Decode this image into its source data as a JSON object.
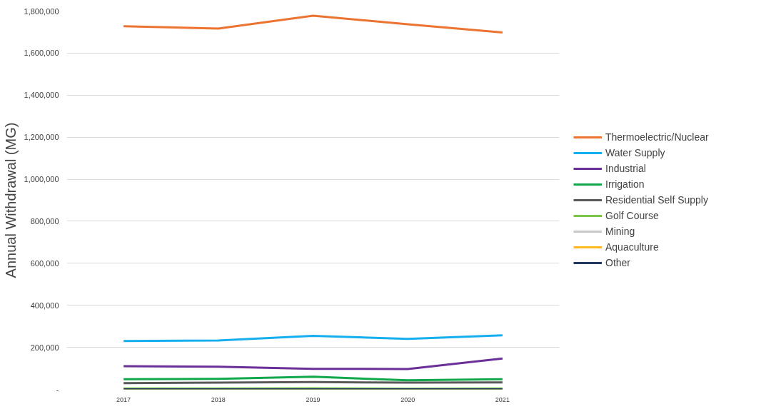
{
  "chart_data": {
    "type": "line",
    "ylabel": "Annual Withdrawal (MG)",
    "categories": [
      "2017",
      "2018",
      "2019",
      "2020",
      "2021"
    ],
    "ylim": [
      0,
      1800000
    ],
    "yticks": [
      {
        "value": 0,
        "label": "-"
      },
      {
        "value": 200000,
        "label": "200,000"
      },
      {
        "value": 400000,
        "label": "400,000"
      },
      {
        "value": 600000,
        "label": "600,000"
      },
      {
        "value": 800000,
        "label": "800,000"
      },
      {
        "value": 1000000,
        "label": "1,000,000"
      },
      {
        "value": 1200000,
        "label": "1,200,000"
      },
      {
        "value": 1400000,
        "label": "1,400,000"
      },
      {
        "value": 1600000,
        "label": "1,600,000"
      },
      {
        "value": 1800000,
        "label": "1,800,000"
      }
    ],
    "grid": "y",
    "legend": "right",
    "marker": "none",
    "line_style": "solid",
    "series": [
      {
        "name": "Thermoelectric/Nuclear",
        "color": "#ed7331",
        "values": [
          1728000,
          1717000,
          1778000,
          1737000,
          1698000
        ]
      },
      {
        "name": "Water Supply",
        "color": "#15aeef",
        "values": [
          230000,
          233000,
          255000,
          240000,
          257000
        ]
      },
      {
        "name": "Industrial",
        "color": "#6a2f99",
        "values": [
          110000,
          108000,
          98000,
          97000,
          147000
        ]
      },
      {
        "name": "Irrigation",
        "color": "#11a84b",
        "values": [
          48000,
          50000,
          60000,
          43000,
          48000
        ]
      },
      {
        "name": "Residential Self Supply",
        "color": "#595959",
        "values": [
          30000,
          32000,
          35000,
          32000,
          33000
        ]
      },
      {
        "name": "Golf Course",
        "color": "#7cc54a",
        "values": [
          4000,
          4000,
          5000,
          3000,
          4000
        ]
      },
      {
        "name": "Mining",
        "color": "#c8c8c8",
        "values": [
          null,
          null,
          null,
          null,
          null
        ]
      },
      {
        "name": "Aquaculture",
        "color": "#fcb922",
        "values": [
          null,
          null,
          null,
          null,
          null
        ]
      },
      {
        "name": "Other",
        "color": "#1f3864",
        "values": [
          0,
          0,
          0,
          0,
          0
        ]
      }
    ]
  }
}
